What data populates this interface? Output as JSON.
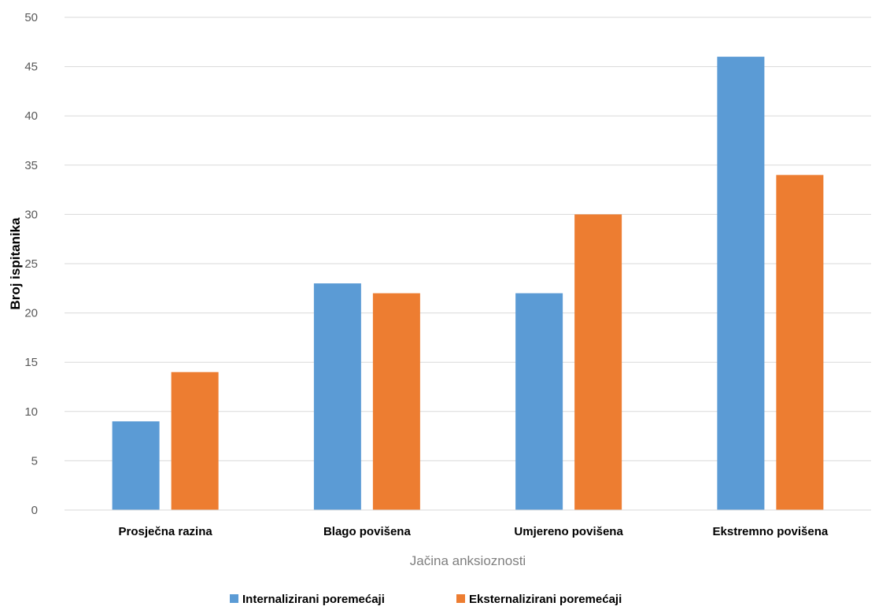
{
  "chart_data": {
    "type": "bar",
    "title": "",
    "xlabel": "Jačina anksioznosti",
    "ylabel": "Broj ispitanika",
    "categories": [
      "Prosječna razina",
      "Blago povišena",
      "Umjereno povišena",
      "Ekstremno povišena"
    ],
    "series": [
      {
        "name": "Internalizirani poremećaji",
        "values": [
          9,
          23,
          22,
          46
        ],
        "color": "#5B9BD5"
      },
      {
        "name": "Eksternalizirani poremećaji",
        "values": [
          14,
          22,
          30,
          34
        ],
        "color": "#ED7D31"
      }
    ],
    "ylim": [
      0,
      50
    ],
    "yticks": [
      0,
      5,
      10,
      15,
      20,
      25,
      30,
      35,
      40,
      45,
      50
    ],
    "grid": true,
    "legend_position": "bottom"
  }
}
